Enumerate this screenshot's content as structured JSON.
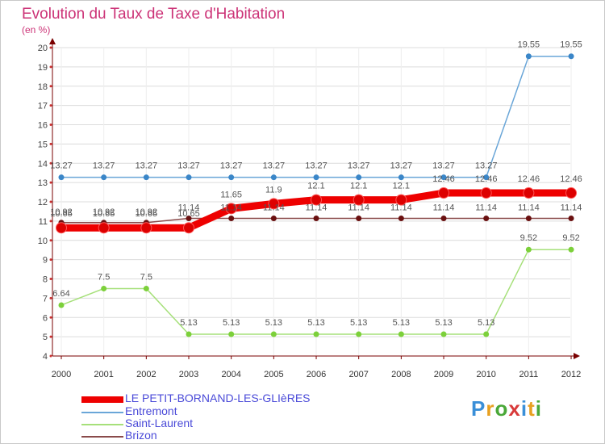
{
  "title": "Evolution du Taux de Taxe d'Habitation",
  "subtitle": "(en %)",
  "logo": "Proxiti",
  "colors": {
    "title": "#cc3377",
    "axis": "#7a0000",
    "legend_text": "#4a4ad8",
    "grid": "#dcdcdc"
  },
  "chart_data": {
    "type": "line",
    "title": "Evolution du Taux de Taxe d'Habitation",
    "ylabel": "(en %)",
    "xlabel": "",
    "ylim": [
      4,
      20
    ],
    "yticks": [
      4,
      5,
      6,
      7,
      8,
      9,
      10,
      11,
      12,
      13,
      14,
      15,
      16,
      17,
      18,
      19,
      20
    ],
    "grid": true,
    "legend_position": "bottom-left",
    "categories": [
      "2000",
      "2001",
      "2002",
      "2003",
      "2004",
      "2005",
      "2006",
      "2007",
      "2008",
      "2009",
      "2010",
      "2011",
      "2012"
    ],
    "series": [
      {
        "name": "LE PETIT-BORNAND-LES-GLIèRES",
        "color": "#ee0000",
        "point_color": "#dd0000",
        "emphasis": "thick",
        "values": [
          10.65,
          10.65,
          10.65,
          10.65,
          11.65,
          11.9,
          12.1,
          12.1,
          12.1,
          12.46,
          12.46,
          12.46,
          12.46
        ],
        "labels": [
          "10.65",
          "10.65",
          "10.65",
          "10.65",
          "11.65",
          "11.9",
          "12.1",
          "12.1",
          "12.1",
          "12.46",
          "12.46",
          "12.46",
          "12.46"
        ]
      },
      {
        "name": "Entremont",
        "color": "#6aa6d8",
        "point_color": "#3a86c8",
        "emphasis": "thin",
        "values": [
          13.27,
          13.27,
          13.27,
          13.27,
          13.27,
          13.27,
          13.27,
          13.27,
          13.27,
          13.27,
          13.27,
          19.55,
          19.55
        ],
        "labels": [
          "13.27",
          "13.27",
          "13.27",
          "13.27",
          "13.27",
          "13.27",
          "13.27",
          "13.27",
          "13.27",
          "13.27",
          "13.27",
          "19.55",
          "19.55"
        ]
      },
      {
        "name": "Saint-Laurent",
        "color": "#a6e07a",
        "point_color": "#7cd03a",
        "emphasis": "thin",
        "values": [
          6.64,
          7.5,
          7.5,
          5.13,
          5.13,
          5.13,
          5.13,
          5.13,
          5.13,
          5.13,
          5.13,
          9.52,
          9.52
        ],
        "labels": [
          "6.64",
          "7.5",
          "7.5",
          "5.13",
          "5.13",
          "5.13",
          "5.13",
          "5.13",
          "5.13",
          "5.13",
          "5.13",
          "9.52",
          "9.52"
        ]
      },
      {
        "name": "Brizon",
        "color": "#8a4a4a",
        "point_color": "#6a1010",
        "emphasis": "thin",
        "values": [
          10.92,
          10.92,
          10.92,
          11.14,
          11.14,
          11.14,
          11.14,
          11.14,
          11.14,
          11.14,
          11.14,
          11.14,
          11.14
        ],
        "labels": [
          "10.92",
          "10.92",
          "10.92",
          "11.14",
          "11.14",
          "11.14",
          "11.14",
          "11.14",
          "11.14",
          "11.14",
          "11.14",
          "11.14",
          "11.14"
        ]
      }
    ]
  }
}
